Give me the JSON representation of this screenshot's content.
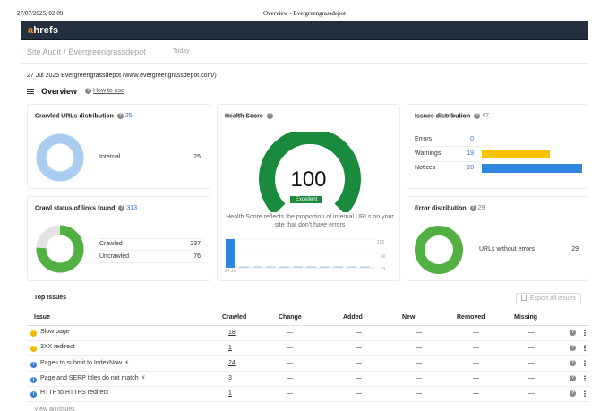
{
  "print_header": {
    "date": "27/07/2025, 02:09",
    "title": "Overview - Evergreengrassdepot"
  },
  "brand": {
    "logo_a": "a",
    "logo_rest": "hrefs",
    "accent": "#ff8800",
    "bar_color": "#243040"
  },
  "breadcrumb": {
    "section": "Site Audit",
    "separator": "/",
    "project": "Evergreengrassdepot",
    "crawl_selector": "Today"
  },
  "crawl_info": "27 Jul 2025 Evergreengrassdepot (www.evergreengrassdepot.com/)",
  "overview": {
    "title": "Overview",
    "how_to": "How to use"
  },
  "crawled_urls": {
    "title": "Crawled URLs distribution",
    "count": "25",
    "legend": [
      {
        "label": "Internal",
        "value": "25",
        "color": "#a9cdf0"
      }
    ]
  },
  "crawl_status": {
    "title": "Crawl status of links found",
    "count": "313",
    "legend": [
      {
        "label": "Crawled",
        "value": "237",
        "color": "#52b043"
      },
      {
        "label": "Uncrawled",
        "value": "76",
        "color": "#e3e3e3"
      }
    ]
  },
  "health_score": {
    "title": "Health Score",
    "score": "100",
    "badge": "Excellent",
    "description": "Health Score reflects the proportion of internal URLs on your site that don't have errors",
    "axis_top": "100",
    "axis_mid": "50",
    "axis_bottom": "0",
    "date_label": "27 Jul",
    "gauge_color": "#1a8a3c"
  },
  "issues_distribution": {
    "title": "Issues distribution",
    "count": "47",
    "rows": [
      {
        "label": "Errors",
        "value": "0",
        "fraction": 0,
        "color": "#e23b2e"
      },
      {
        "label": "Warnings",
        "value": "19",
        "fraction": 0.68,
        "color": "#f5c300"
      },
      {
        "label": "Notices",
        "value": "28",
        "fraction": 1,
        "color": "#2e86de"
      }
    ]
  },
  "error_distribution": {
    "title": "Error distribution",
    "count": "29",
    "legend": [
      {
        "label": "URLs without errors",
        "value": "29",
        "color": "#52b043"
      }
    ]
  },
  "top_issues": {
    "title": "Top Issues",
    "export_label": "Export all issues",
    "columns": [
      "Issue",
      "Crawled",
      "Change",
      "Added",
      "New",
      "Removed",
      "Missing"
    ],
    "rows": [
      {
        "type": "warning",
        "issue": "Slow page",
        "crawled": "18",
        "bolt": false,
        "change": "—",
        "added": "—",
        "new": "—",
        "removed": "—",
        "missing": "—"
      },
      {
        "type": "warning",
        "issue": "3XX redirect",
        "crawled": "1",
        "bolt": false,
        "change": "—",
        "added": "—",
        "new": "—",
        "removed": "—",
        "missing": "—"
      },
      {
        "type": "notice",
        "issue": "Pages to submit to IndexNow",
        "crawled": "24",
        "bolt": true,
        "change": "—",
        "added": "—",
        "new": "—",
        "removed": "—",
        "missing": "—"
      },
      {
        "type": "notice",
        "issue": "Page and SERP titles do not match",
        "crawled": "3",
        "bolt": true,
        "change": "—",
        "added": "—",
        "new": "—",
        "removed": "—",
        "missing": "—"
      },
      {
        "type": "notice",
        "issue": "HTTP to HTTPS redirect",
        "crawled": "1",
        "bolt": false,
        "change": "—",
        "added": "—",
        "new": "—",
        "removed": "—",
        "missing": "—"
      }
    ],
    "view_all": "View all issues"
  }
}
